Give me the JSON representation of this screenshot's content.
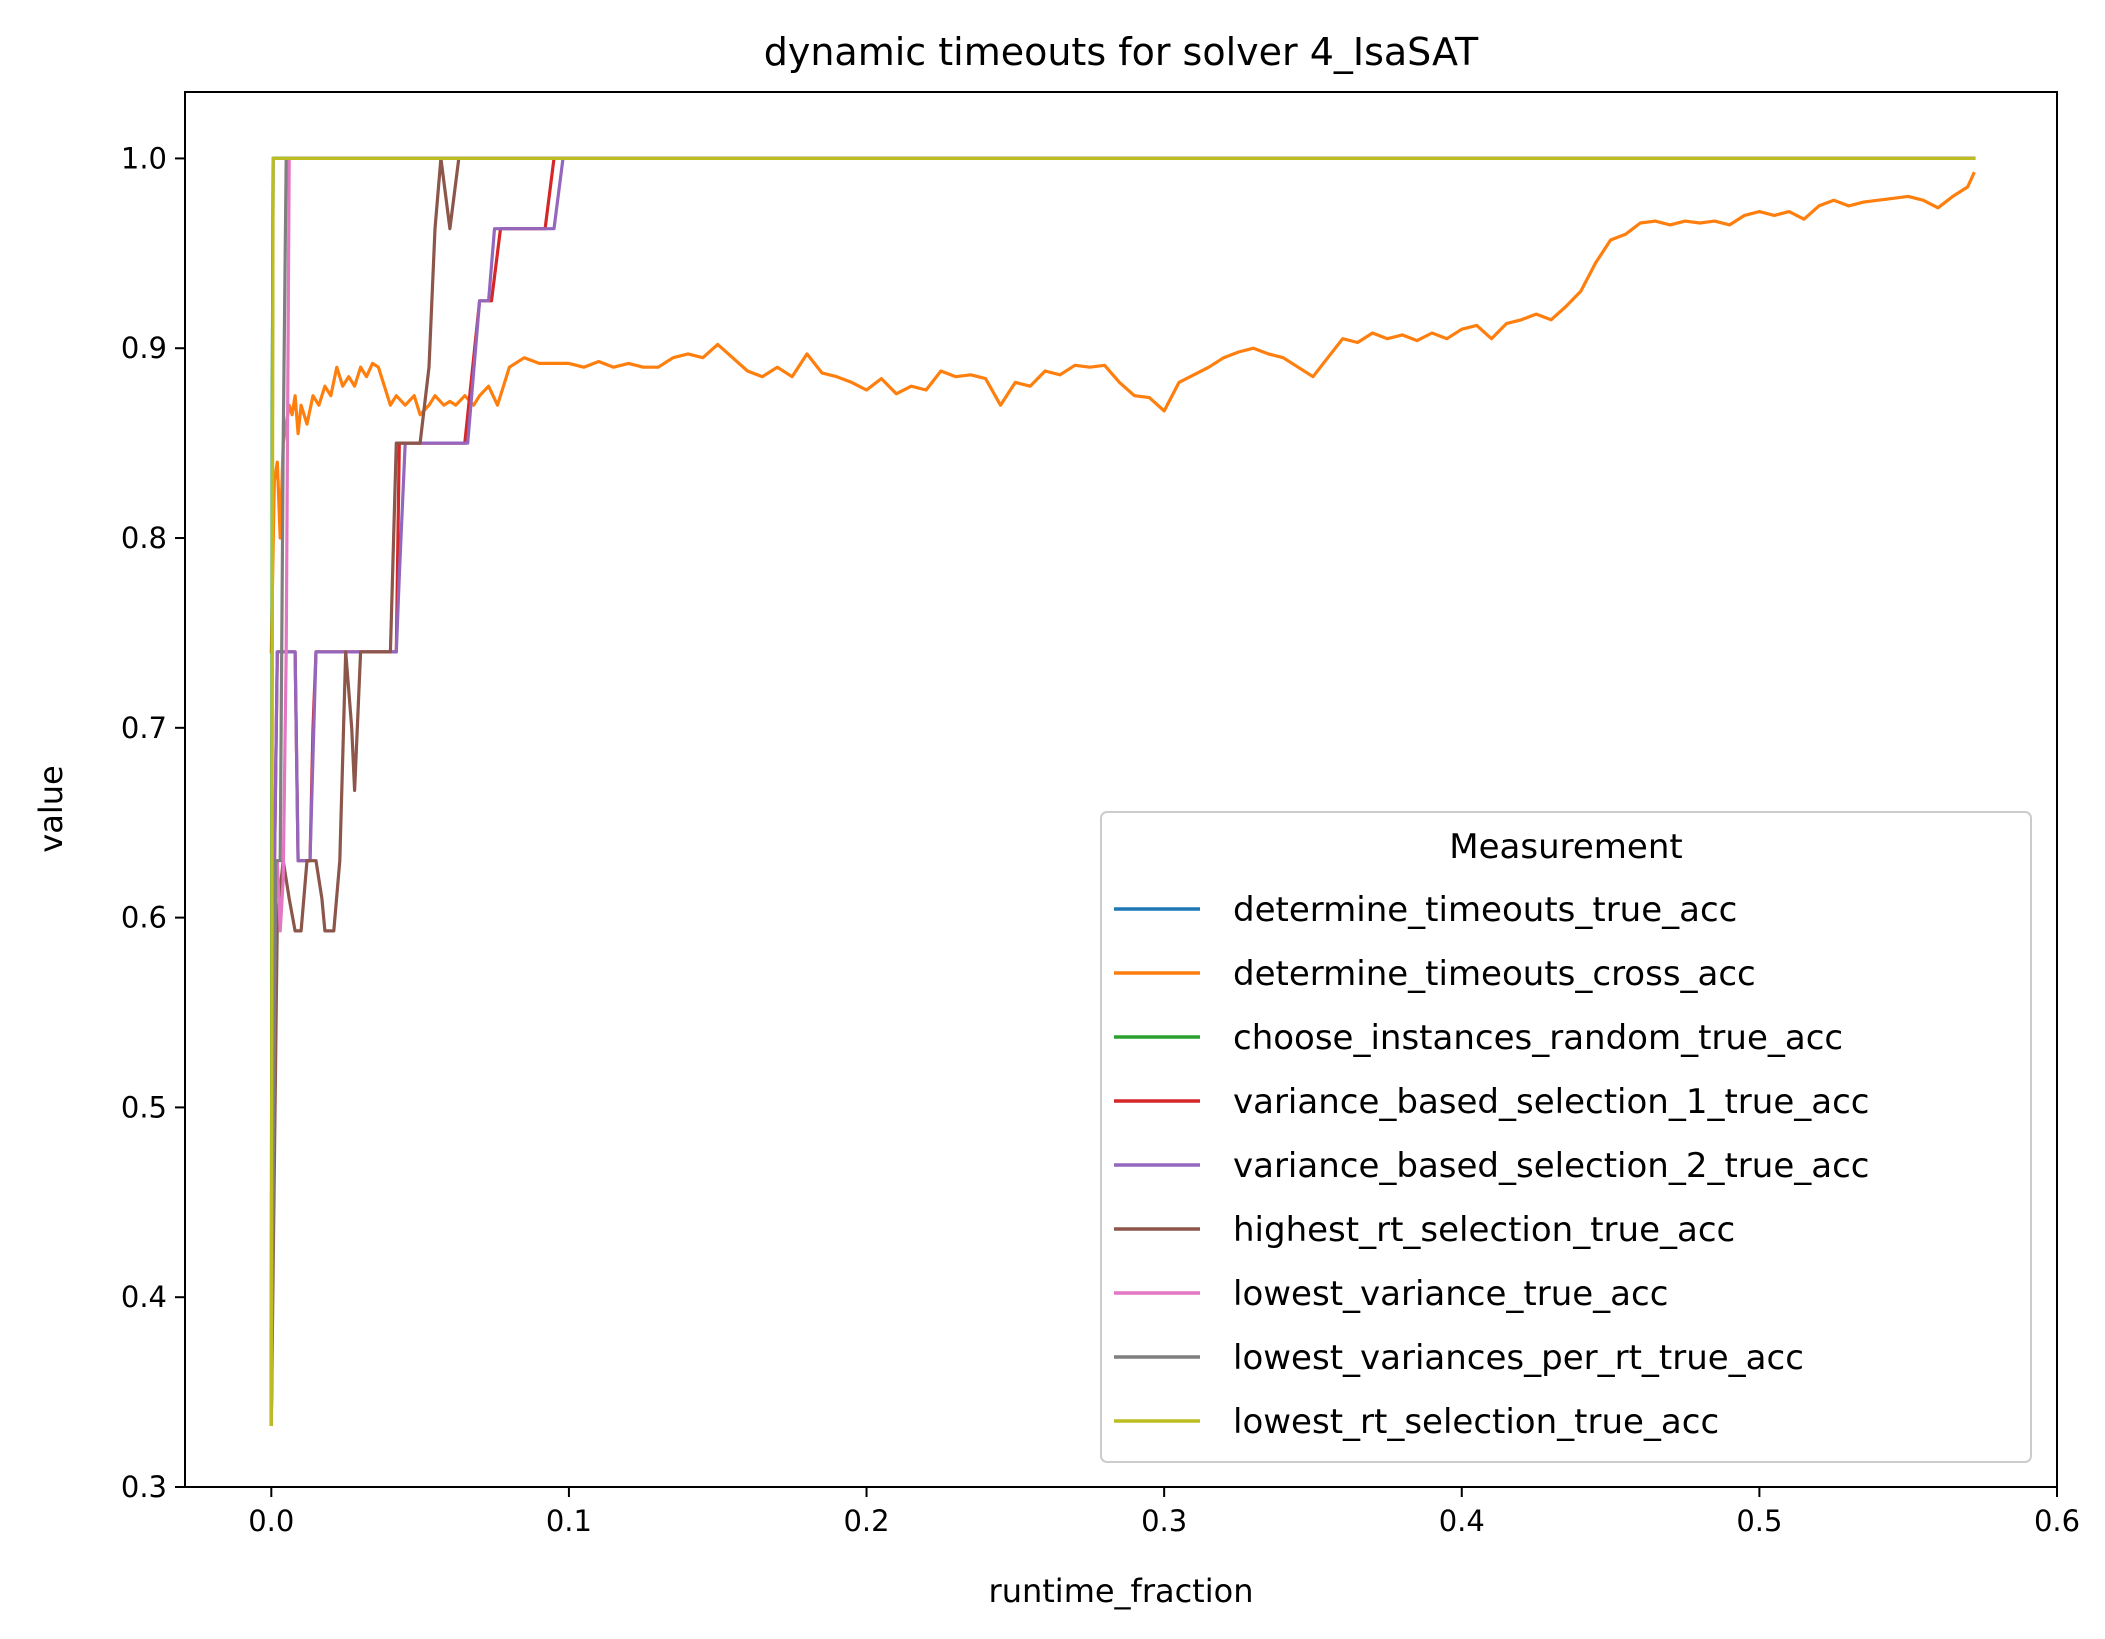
{
  "chart_data": {
    "type": "line",
    "title": "dynamic timeouts for solver 4_IsaSAT",
    "xlabel": "runtime_fraction",
    "ylabel": "value",
    "xlim": [
      -0.029,
      0.6
    ],
    "ylim": [
      0.3,
      1.035
    ],
    "xticks": [
      0.0,
      0.1,
      0.2,
      0.3,
      0.4,
      0.5,
      0.6
    ],
    "xtick_labels": [
      "0.0",
      "0.1",
      "0.2",
      "0.3",
      "0.4",
      "0.5",
      "0.6"
    ],
    "yticks": [
      0.3,
      0.4,
      0.5,
      0.6,
      0.7,
      0.8,
      0.9,
      1.0
    ],
    "ytick_labels": [
      "0.3",
      "0.4",
      "0.5",
      "0.6",
      "0.7",
      "0.8",
      "0.9",
      "1.0"
    ],
    "grid": false,
    "legend": {
      "title": "Measurement",
      "placement": "lower-right"
    },
    "series": [
      {
        "name": "determine_timeouts_true_acc",
        "color": "#1f77b4",
        "points": [
          [
            0.0,
            0.333
          ],
          [
            0.0003,
            0.85
          ],
          [
            0.0006,
            1.0
          ],
          [
            0.572,
            1.0
          ]
        ]
      },
      {
        "name": "determine_timeouts_cross_acc",
        "color": "#ff7f0e",
        "points": [
          [
            0.0,
            0.74
          ],
          [
            0.001,
            0.83
          ],
          [
            0.002,
            0.84
          ],
          [
            0.003,
            0.8
          ],
          [
            0.004,
            0.85
          ],
          [
            0.005,
            0.86
          ],
          [
            0.006,
            0.87
          ],
          [
            0.007,
            0.865
          ],
          [
            0.008,
            0.875
          ],
          [
            0.009,
            0.855
          ],
          [
            0.01,
            0.87
          ],
          [
            0.012,
            0.86
          ],
          [
            0.014,
            0.875
          ],
          [
            0.016,
            0.87
          ],
          [
            0.018,
            0.88
          ],
          [
            0.02,
            0.875
          ],
          [
            0.022,
            0.89
          ],
          [
            0.024,
            0.88
          ],
          [
            0.026,
            0.885
          ],
          [
            0.028,
            0.88
          ],
          [
            0.03,
            0.89
          ],
          [
            0.032,
            0.885
          ],
          [
            0.034,
            0.892
          ],
          [
            0.036,
            0.89
          ],
          [
            0.038,
            0.88
          ],
          [
            0.04,
            0.87
          ],
          [
            0.042,
            0.875
          ],
          [
            0.045,
            0.87
          ],
          [
            0.048,
            0.875
          ],
          [
            0.05,
            0.865
          ],
          [
            0.053,
            0.87
          ],
          [
            0.055,
            0.875
          ],
          [
            0.058,
            0.87
          ],
          [
            0.06,
            0.872
          ],
          [
            0.062,
            0.87
          ],
          [
            0.065,
            0.875
          ],
          [
            0.068,
            0.87
          ],
          [
            0.07,
            0.875
          ],
          [
            0.073,
            0.88
          ],
          [
            0.076,
            0.87
          ],
          [
            0.08,
            0.89
          ],
          [
            0.085,
            0.895
          ],
          [
            0.09,
            0.892
          ],
          [
            0.095,
            0.892
          ],
          [
            0.1,
            0.892
          ],
          [
            0.105,
            0.89
          ],
          [
            0.11,
            0.893
          ],
          [
            0.115,
            0.89
          ],
          [
            0.12,
            0.892
          ],
          [
            0.125,
            0.89
          ],
          [
            0.13,
            0.89
          ],
          [
            0.135,
            0.895
          ],
          [
            0.14,
            0.897
          ],
          [
            0.145,
            0.895
          ],
          [
            0.15,
            0.902
          ],
          [
            0.155,
            0.895
          ],
          [
            0.16,
            0.888
          ],
          [
            0.165,
            0.885
          ],
          [
            0.17,
            0.89
          ],
          [
            0.175,
            0.885
          ],
          [
            0.18,
            0.897
          ],
          [
            0.185,
            0.887
          ],
          [
            0.19,
            0.885
          ],
          [
            0.195,
            0.882
          ],
          [
            0.2,
            0.878
          ],
          [
            0.205,
            0.884
          ],
          [
            0.21,
            0.876
          ],
          [
            0.215,
            0.88
          ],
          [
            0.22,
            0.878
          ],
          [
            0.225,
            0.888
          ],
          [
            0.23,
            0.885
          ],
          [
            0.235,
            0.886
          ],
          [
            0.24,
            0.884
          ],
          [
            0.245,
            0.87
          ],
          [
            0.25,
            0.882
          ],
          [
            0.255,
            0.88
          ],
          [
            0.26,
            0.888
          ],
          [
            0.265,
            0.886
          ],
          [
            0.27,
            0.891
          ],
          [
            0.275,
            0.89
          ],
          [
            0.28,
            0.891
          ],
          [
            0.285,
            0.882
          ],
          [
            0.29,
            0.875
          ],
          [
            0.295,
            0.874
          ],
          [
            0.3,
            0.867
          ],
          [
            0.305,
            0.882
          ],
          [
            0.31,
            0.886
          ],
          [
            0.315,
            0.89
          ],
          [
            0.32,
            0.895
          ],
          [
            0.325,
            0.898
          ],
          [
            0.33,
            0.9
          ],
          [
            0.335,
            0.897
          ],
          [
            0.34,
            0.895
          ],
          [
            0.345,
            0.89
          ],
          [
            0.35,
            0.885
          ],
          [
            0.355,
            0.895
          ],
          [
            0.36,
            0.905
          ],
          [
            0.365,
            0.903
          ],
          [
            0.37,
            0.908
          ],
          [
            0.375,
            0.905
          ],
          [
            0.38,
            0.907
          ],
          [
            0.385,
            0.904
          ],
          [
            0.39,
            0.908
          ],
          [
            0.395,
            0.905
          ],
          [
            0.4,
            0.91
          ],
          [
            0.405,
            0.912
          ],
          [
            0.41,
            0.905
          ],
          [
            0.415,
            0.913
          ],
          [
            0.42,
            0.915
          ],
          [
            0.425,
            0.918
          ],
          [
            0.43,
            0.915
          ],
          [
            0.435,
            0.922
          ],
          [
            0.44,
            0.93
          ],
          [
            0.445,
            0.945
          ],
          [
            0.45,
            0.957
          ],
          [
            0.455,
            0.96
          ],
          [
            0.46,
            0.966
          ],
          [
            0.465,
            0.967
          ],
          [
            0.47,
            0.965
          ],
          [
            0.475,
            0.967
          ],
          [
            0.48,
            0.966
          ],
          [
            0.485,
            0.967
          ],
          [
            0.49,
            0.965
          ],
          [
            0.495,
            0.97
          ],
          [
            0.5,
            0.972
          ],
          [
            0.505,
            0.97
          ],
          [
            0.51,
            0.972
          ],
          [
            0.515,
            0.968
          ],
          [
            0.52,
            0.975
          ],
          [
            0.525,
            0.978
          ],
          [
            0.53,
            0.975
          ],
          [
            0.535,
            0.977
          ],
          [
            0.54,
            0.978
          ],
          [
            0.545,
            0.979
          ],
          [
            0.55,
            0.98
          ],
          [
            0.555,
            0.978
          ],
          [
            0.56,
            0.974
          ],
          [
            0.565,
            0.98
          ],
          [
            0.57,
            0.985
          ],
          [
            0.572,
            0.992
          ]
        ]
      },
      {
        "name": "choose_instances_random_true_acc",
        "color": "#2ca02c",
        "points": [
          [
            0.0,
            0.333
          ],
          [
            0.0003,
            0.86
          ],
          [
            0.0006,
            1.0
          ],
          [
            0.572,
            1.0
          ]
        ]
      },
      {
        "name": "variance_based_selection_1_true_acc",
        "color": "#d62728",
        "points": [
          [
            0.0,
            0.333
          ],
          [
            0.001,
            0.62
          ],
          [
            0.002,
            0.74
          ],
          [
            0.008,
            0.74
          ],
          [
            0.009,
            0.63
          ],
          [
            0.013,
            0.63
          ],
          [
            0.014,
            0.7
          ],
          [
            0.015,
            0.74
          ],
          [
            0.042,
            0.74
          ],
          [
            0.043,
            0.85
          ],
          [
            0.065,
            0.85
          ],
          [
            0.07,
            0.925
          ],
          [
            0.074,
            0.925
          ],
          [
            0.077,
            0.963
          ],
          [
            0.092,
            0.963
          ],
          [
            0.095,
            1.0
          ],
          [
            0.572,
            1.0
          ]
        ]
      },
      {
        "name": "variance_based_selection_2_true_acc",
        "color": "#9467bd",
        "points": [
          [
            0.0,
            0.333
          ],
          [
            0.001,
            0.62
          ],
          [
            0.002,
            0.74
          ],
          [
            0.008,
            0.74
          ],
          [
            0.009,
            0.63
          ],
          [
            0.013,
            0.63
          ],
          [
            0.015,
            0.74
          ],
          [
            0.042,
            0.74
          ],
          [
            0.043,
            0.78
          ],
          [
            0.045,
            0.85
          ],
          [
            0.066,
            0.85
          ],
          [
            0.07,
            0.925
          ],
          [
            0.073,
            0.925
          ],
          [
            0.075,
            0.963
          ],
          [
            0.095,
            0.963
          ],
          [
            0.098,
            1.0
          ],
          [
            0.572,
            1.0
          ]
        ]
      },
      {
        "name": "highest_rt_selection_true_acc",
        "color": "#8c564b",
        "points": [
          [
            0.0,
            0.333
          ],
          [
            0.002,
            0.6
          ],
          [
            0.004,
            0.63
          ],
          [
            0.006,
            0.61
          ],
          [
            0.008,
            0.593
          ],
          [
            0.01,
            0.593
          ],
          [
            0.012,
            0.63
          ],
          [
            0.015,
            0.63
          ],
          [
            0.017,
            0.61
          ],
          [
            0.018,
            0.593
          ],
          [
            0.021,
            0.593
          ],
          [
            0.023,
            0.63
          ],
          [
            0.025,
            0.74
          ],
          [
            0.027,
            0.7
          ],
          [
            0.028,
            0.667
          ],
          [
            0.03,
            0.74
          ],
          [
            0.04,
            0.74
          ],
          [
            0.042,
            0.85
          ],
          [
            0.05,
            0.85
          ],
          [
            0.053,
            0.89
          ],
          [
            0.055,
            0.963
          ],
          [
            0.057,
            1.0
          ],
          [
            0.06,
            0.963
          ],
          [
            0.063,
            1.0
          ],
          [
            0.572,
            1.0
          ]
        ]
      },
      {
        "name": "lowest_variance_true_acc",
        "color": "#e377c2",
        "points": [
          [
            0.0,
            0.333
          ],
          [
            0.001,
            0.593
          ],
          [
            0.002,
            0.63
          ],
          [
            0.003,
            0.593
          ],
          [
            0.004,
            0.62
          ],
          [
            0.005,
            0.74
          ],
          [
            0.006,
            1.0
          ],
          [
            0.572,
            1.0
          ]
        ]
      },
      {
        "name": "lowest_variances_per_rt_true_acc",
        "color": "#7f7f7f",
        "points": [
          [
            0.0,
            0.333
          ],
          [
            0.0015,
            0.63
          ],
          [
            0.003,
            0.63
          ],
          [
            0.004,
            0.85
          ],
          [
            0.005,
            1.0
          ],
          [
            0.572,
            1.0
          ]
        ]
      },
      {
        "name": "lowest_rt_selection_true_acc",
        "color": "#bcbd22",
        "points": [
          [
            0.0,
            0.333
          ],
          [
            0.0003,
            0.7
          ],
          [
            0.0006,
            1.0
          ],
          [
            0.572,
            1.0
          ]
        ]
      }
    ]
  }
}
